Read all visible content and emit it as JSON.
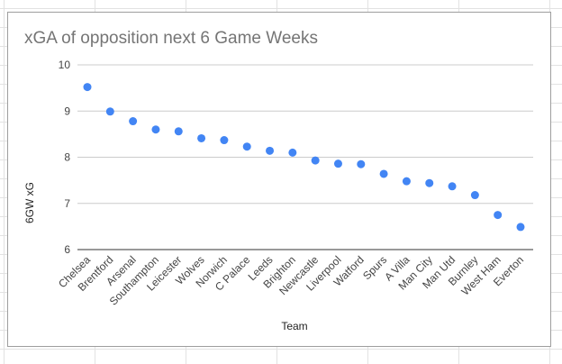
{
  "chart_data": {
    "type": "scatter",
    "title": "xGA of opposition next 6 Game Weeks",
    "xlabel": "Team",
    "ylabel": "6GW xG",
    "ylim": [
      6,
      10
    ],
    "yticks": [
      6,
      7,
      8,
      9,
      10
    ],
    "grid": true,
    "legend": "none",
    "point_color": "#4285f4",
    "gridline_color": "#cccccc",
    "categories": [
      "Chelsea",
      "Brentford",
      "Arsenal",
      "Southampton",
      "Leicester",
      "Wolves",
      "Norwich",
      "C Palace",
      "Leeds",
      "Brighton",
      "Newcastle",
      "Liverpool",
      "Watford",
      "Spurs",
      "A Villa",
      "Man City",
      "Man Utd",
      "Burnley",
      "West Ham",
      "Everton"
    ],
    "values": [
      9.52,
      8.99,
      8.78,
      8.6,
      8.56,
      8.41,
      8.37,
      8.23,
      8.14,
      8.1,
      7.93,
      7.86,
      7.85,
      7.64,
      7.48,
      7.44,
      7.37,
      7.18,
      6.75,
      6.49
    ]
  }
}
